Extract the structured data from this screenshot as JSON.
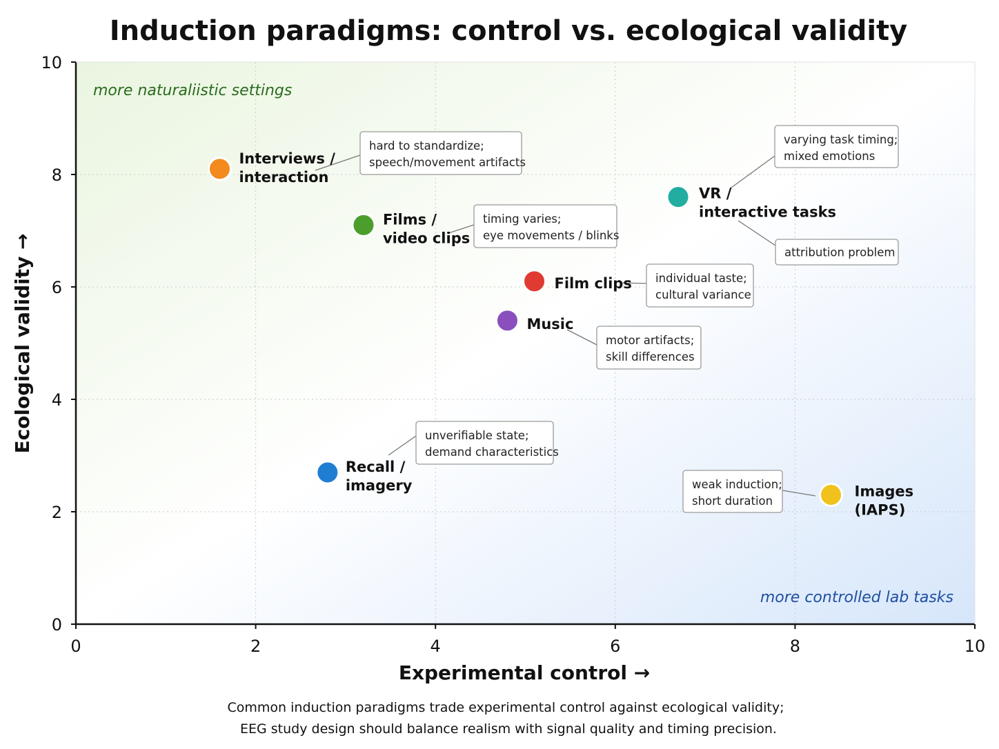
{
  "chart_data": {
    "type": "scatter",
    "title": "Induction paradigms: control vs. ecological validity",
    "xlabel": "Experimental control →",
    "ylabel": "Ecological validity →",
    "xlim": [
      0,
      10
    ],
    "ylim": [
      0,
      10
    ],
    "xticks": [
      "0",
      "2",
      "4",
      "6",
      "8",
      "10"
    ],
    "yticks": [
      "0",
      "2",
      "4",
      "6",
      "8",
      "10"
    ],
    "grid": true,
    "region_labels": {
      "top_left": "more naturaliistic settings",
      "bottom_right": "more controlled lab tasks"
    },
    "points": [
      {
        "label": [
          "Interviews /",
          "interaction"
        ],
        "x": 1.6,
        "y": 8.1,
        "color": "#f28a1e"
      },
      {
        "label": [
          "Films /",
          "video clips"
        ],
        "x": 3.2,
        "y": 7.1,
        "color": "#4b9e2b"
      },
      {
        "label": [
          "VR /",
          "interactive tasks"
        ],
        "x": 6.7,
        "y": 7.6,
        "color": "#21ada0"
      },
      {
        "label": [
          "Film clips"
        ],
        "x": 5.1,
        "y": 6.1,
        "color": "#e03b33"
      },
      {
        "label": [
          "Music"
        ],
        "x": 4.8,
        "y": 5.4,
        "color": "#8a4fbd"
      },
      {
        "label": [
          "Recall /",
          "imagery"
        ],
        "x": 2.8,
        "y": 2.7,
        "color": "#1f7ed2"
      },
      {
        "label": [
          "Images",
          "(IAPS)"
        ],
        "x": 8.4,
        "y": 2.3,
        "color": "#f1c21b"
      }
    ],
    "annotations": [
      {
        "lines": [
          "hard to standardize;",
          "speech/movement artifacts"
        ]
      },
      {
        "lines": [
          "timing varies;",
          "eye movements / blinks"
        ]
      },
      {
        "lines": [
          "varying task timing;",
          "mixed emotions"
        ]
      },
      {
        "lines": [
          "attribution problem"
        ]
      },
      {
        "lines": [
          "individual taste;",
          "cultural variance"
        ]
      },
      {
        "lines": [
          "motor artifacts;",
          "skill differences"
        ]
      },
      {
        "lines": [
          "unverifiable state;",
          "demand characteristics"
        ]
      },
      {
        "lines": [
          "weak induction;",
          "short duration"
        ]
      }
    ]
  },
  "caption": [
    "Common induction paradigms trade experimental control against ecological validity;",
    "EEG study design should balance realism with signal quality and timing precision."
  ]
}
